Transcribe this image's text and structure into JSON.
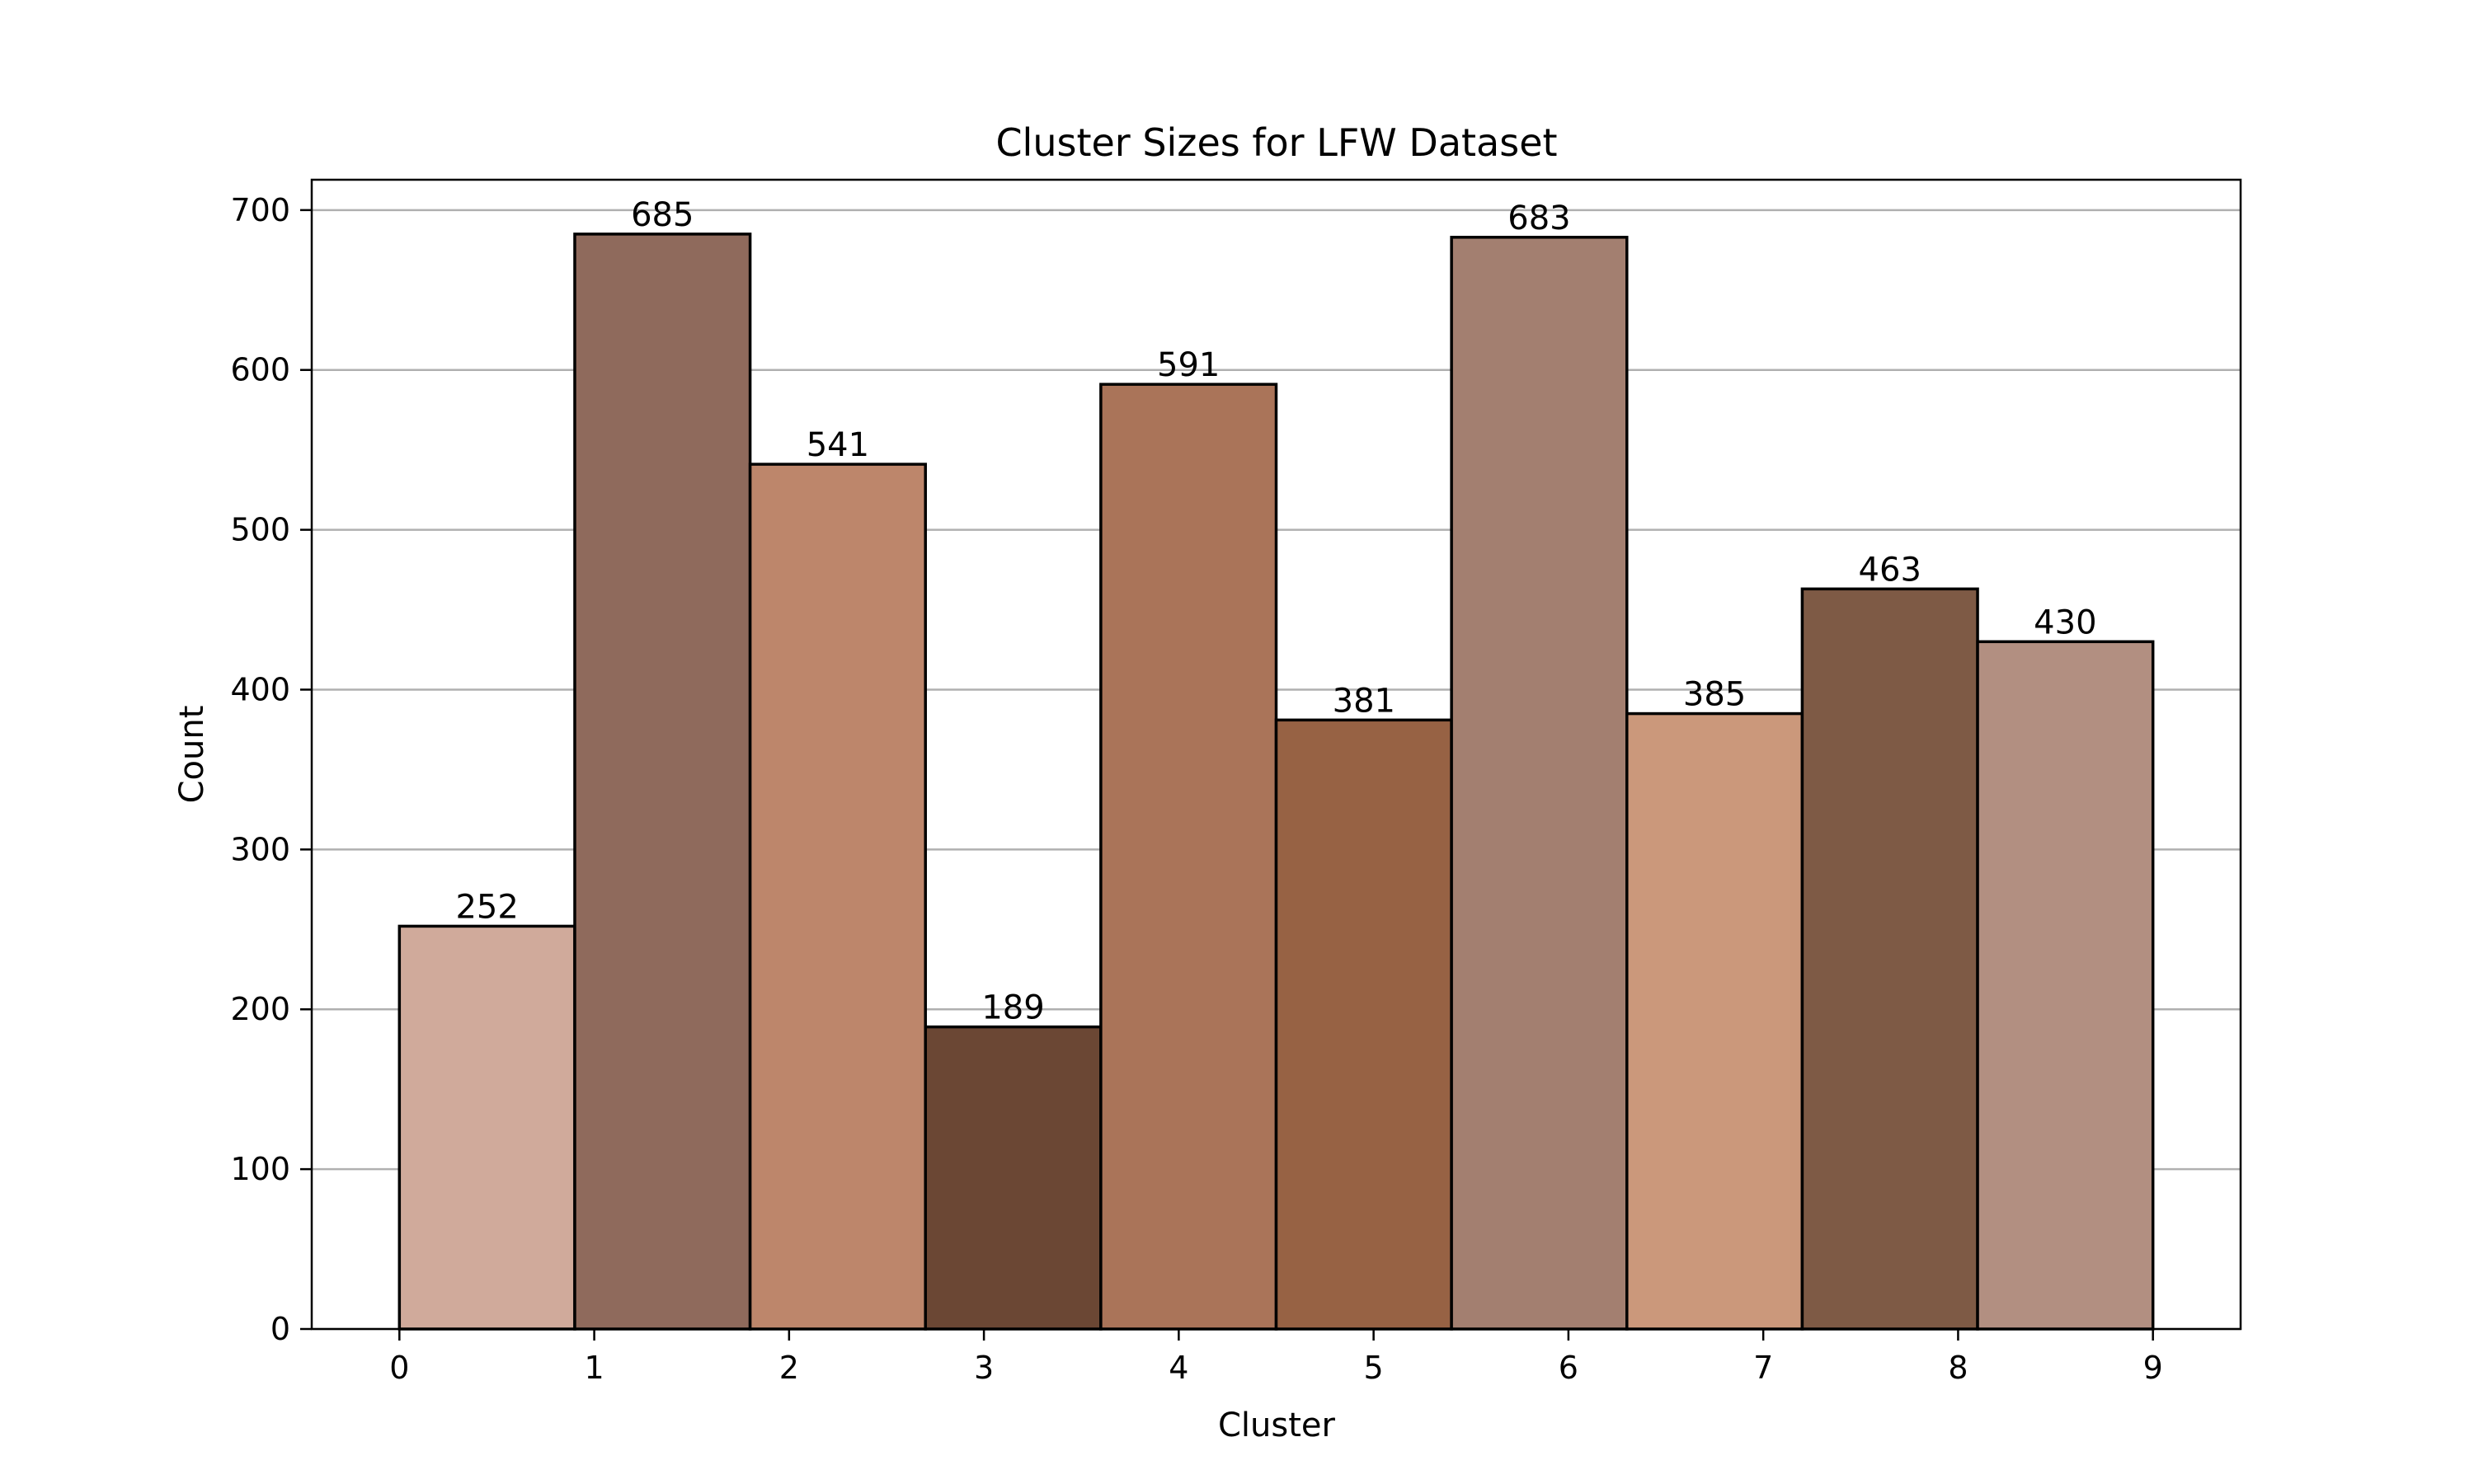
{
  "chart_data": {
    "type": "bar",
    "title": "Cluster Sizes for LFW Dataset",
    "xlabel": "Cluster",
    "ylabel": "Count",
    "categories": [
      "0",
      "1",
      "2",
      "3",
      "4",
      "5",
      "6",
      "7",
      "8",
      "9"
    ],
    "values": [
      252,
      685,
      541,
      189,
      591,
      381,
      683,
      385,
      463,
      430
    ],
    "colors": [
      "#d0aa9b",
      "#8f6a5c",
      "#bd866b",
      "#6b4734",
      "#aa7459",
      "#976244",
      "#a37f70",
      "#cb987b",
      "#7e5a45",
      "#b28f81"
    ],
    "xticks": [
      0,
      1,
      2,
      3,
      4,
      5,
      6,
      7,
      8,
      9
    ],
    "yticks": [
      0,
      100,
      200,
      300,
      400,
      500,
      600,
      700
    ],
    "xlim": [
      -0.45,
      9.45
    ],
    "ylim": [
      0,
      719
    ],
    "bin_edges": [
      0,
      0.9,
      1.8,
      2.7,
      3.6,
      4.5,
      5.4,
      6.3,
      7.2,
      8.1,
      9.0
    ],
    "grid": "y"
  }
}
